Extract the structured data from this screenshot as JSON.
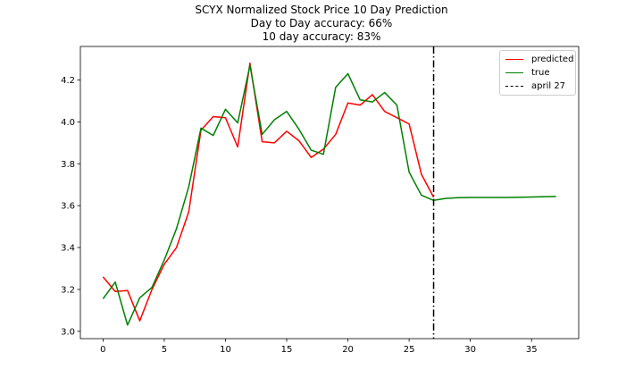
{
  "title_lines": [
    "SCYX Normalized Stock Price 10 Day Prediction",
    "Day to Day accuracy: 66%",
    "10 day accuracy: 83%"
  ],
  "chart_data": {
    "type": "line",
    "title": "SCYX Normalized Stock Price 10 Day Prediction",
    "subtitle": [
      "Day to Day accuracy: 66%",
      "10 day accuracy: 83%"
    ],
    "xlabel": "",
    "ylabel": "",
    "xlim": [
      -1.85,
      38.85
    ],
    "ylim": [
      2.965,
      4.36
    ],
    "x_ticks": [
      0,
      5,
      10,
      15,
      20,
      25,
      30,
      35
    ],
    "y_ticks": [
      3.0,
      3.2,
      3.4,
      3.6,
      3.8,
      4.0,
      4.2
    ],
    "y_tick_labels": [
      "3.0",
      "3.2",
      "3.4",
      "3.6",
      "3.8",
      "4.0",
      "4.2"
    ],
    "grid": false,
    "legend_position": "top-right",
    "series": [
      {
        "name": "predicted",
        "color": "#ff0000",
        "x": [
          0,
          1,
          2,
          3,
          4,
          5,
          6,
          7,
          8,
          9,
          10,
          11,
          12,
          13,
          14,
          15,
          16,
          17,
          18,
          19,
          20,
          21,
          22,
          23,
          24,
          25,
          26,
          27
        ],
        "y": [
          3.26,
          3.19,
          3.195,
          3.05,
          3.2,
          3.32,
          3.4,
          3.57,
          3.96,
          4.025,
          4.02,
          3.88,
          4.28,
          3.905,
          3.9,
          3.955,
          3.91,
          3.83,
          3.87,
          3.94,
          4.09,
          4.08,
          4.13,
          4.05,
          4.02,
          3.99,
          3.75,
          3.64
        ]
      },
      {
        "name": "true",
        "color": "#008000",
        "x": [
          0,
          1,
          2,
          3,
          4,
          5,
          6,
          7,
          8,
          9,
          10,
          11,
          12,
          13,
          14,
          15,
          16,
          17,
          18,
          19,
          20,
          21,
          22,
          23,
          24,
          25,
          26,
          27,
          28,
          29,
          30,
          31,
          32,
          33,
          34,
          35,
          36,
          37
        ],
        "y": [
          3.155,
          3.235,
          3.03,
          3.16,
          3.21,
          3.34,
          3.49,
          3.69,
          3.97,
          3.935,
          4.06,
          3.995,
          4.27,
          3.94,
          4.01,
          4.05,
          3.965,
          3.865,
          3.845,
          4.165,
          4.23,
          4.105,
          4.095,
          4.14,
          4.08,
          3.76,
          3.65,
          3.625,
          3.635,
          3.638,
          3.639,
          3.639,
          3.639,
          3.639,
          3.64,
          3.641,
          3.643,
          3.644
        ]
      }
    ],
    "vline": {
      "name": "april 27",
      "x": 27,
      "color": "#000000",
      "style": "dash-dot"
    }
  },
  "legend": {
    "items": [
      {
        "label": "predicted",
        "color": "#ff0000"
      },
      {
        "label": "true",
        "color": "#008000"
      },
      {
        "label": "april 27",
        "color": "#000000"
      }
    ]
  }
}
